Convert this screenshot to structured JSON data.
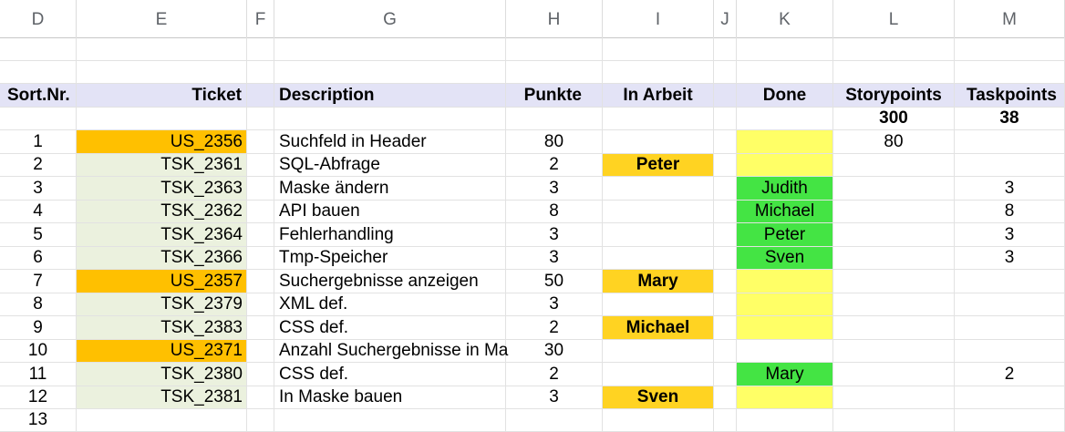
{
  "columns": [
    "D",
    "E",
    "F",
    "G",
    "H",
    "I",
    "J",
    "K",
    "L",
    "M"
  ],
  "header": {
    "sort_nr": "Sort.Nr.",
    "ticket": "Ticket",
    "description": "Description",
    "punkte": "Punkte",
    "in_arbeit": "In Arbeit",
    "done": "Done",
    "storypoints": "Storypoints",
    "taskpoints": "Taskpoints"
  },
  "totals": {
    "storypoints": "300",
    "taskpoints": "38"
  },
  "rows": [
    {
      "nr": "1",
      "ticket": "US_2356",
      "description": "Suchfeld in Header",
      "punkte": "80",
      "in_arbeit": "",
      "done": "",
      "storypoints": "80",
      "taskpoints": ""
    },
    {
      "nr": "2",
      "ticket": "TSK_2361",
      "description": "SQL-Abfrage",
      "punkte": "2",
      "in_arbeit": "Peter",
      "done": "",
      "storypoints": "",
      "taskpoints": ""
    },
    {
      "nr": "3",
      "ticket": "TSK_2363",
      "description": "Maske ändern",
      "punkte": "3",
      "in_arbeit": "",
      "done": "Judith",
      "storypoints": "",
      "taskpoints": "3"
    },
    {
      "nr": "4",
      "ticket": "TSK_2362",
      "description": "API bauen",
      "punkte": "8",
      "in_arbeit": "",
      "done": "Michael",
      "storypoints": "",
      "taskpoints": "8"
    },
    {
      "nr": "5",
      "ticket": "TSK_2364",
      "description": "Fehlerhandling",
      "punkte": "3",
      "in_arbeit": "",
      "done": "Peter",
      "storypoints": "",
      "taskpoints": "3"
    },
    {
      "nr": "6",
      "ticket": "TSK_2366",
      "description": "Tmp-Speicher",
      "punkte": "3",
      "in_arbeit": "",
      "done": "Sven",
      "storypoints": "",
      "taskpoints": "3"
    },
    {
      "nr": "7",
      "ticket": "US_2357",
      "description": "Suchergebnisse anzeigen",
      "punkte": "50",
      "in_arbeit": "Mary",
      "done": "",
      "storypoints": "",
      "taskpoints": ""
    },
    {
      "nr": "8",
      "ticket": "TSK_2379",
      "description": "XML def.",
      "punkte": "3",
      "in_arbeit": "",
      "done": "",
      "storypoints": "",
      "taskpoints": ""
    },
    {
      "nr": "9",
      "ticket": "TSK_2383",
      "description": "CSS def.",
      "punkte": "2",
      "in_arbeit": "Michael",
      "done": "",
      "storypoints": "",
      "taskpoints": ""
    },
    {
      "nr": "10",
      "ticket": "US_2371",
      "description": "Anzahl Suchergebnisse in Ma",
      "punkte": "30",
      "in_arbeit": "",
      "done": "",
      "storypoints": "",
      "taskpoints": ""
    },
    {
      "nr": "11",
      "ticket": "TSK_2380",
      "description": "CSS def.",
      "punkte": "2",
      "in_arbeit": "",
      "done": "Mary",
      "storypoints": "",
      "taskpoints": "2"
    },
    {
      "nr": "12",
      "ticket": "TSK_2381",
      "description": "In Maske bauen",
      "punkte": "3",
      "in_arbeit": "Sven",
      "done": "",
      "storypoints": "",
      "taskpoints": ""
    }
  ],
  "next_row_nr": "13",
  "colors": {
    "header_band": "#e3e3f6",
    "user_story": "#ffc000",
    "task": "#ebf1de",
    "in_arbeit": "#ffd322",
    "done_green": "#44e444",
    "done_yellow": "#ffff66"
  }
}
